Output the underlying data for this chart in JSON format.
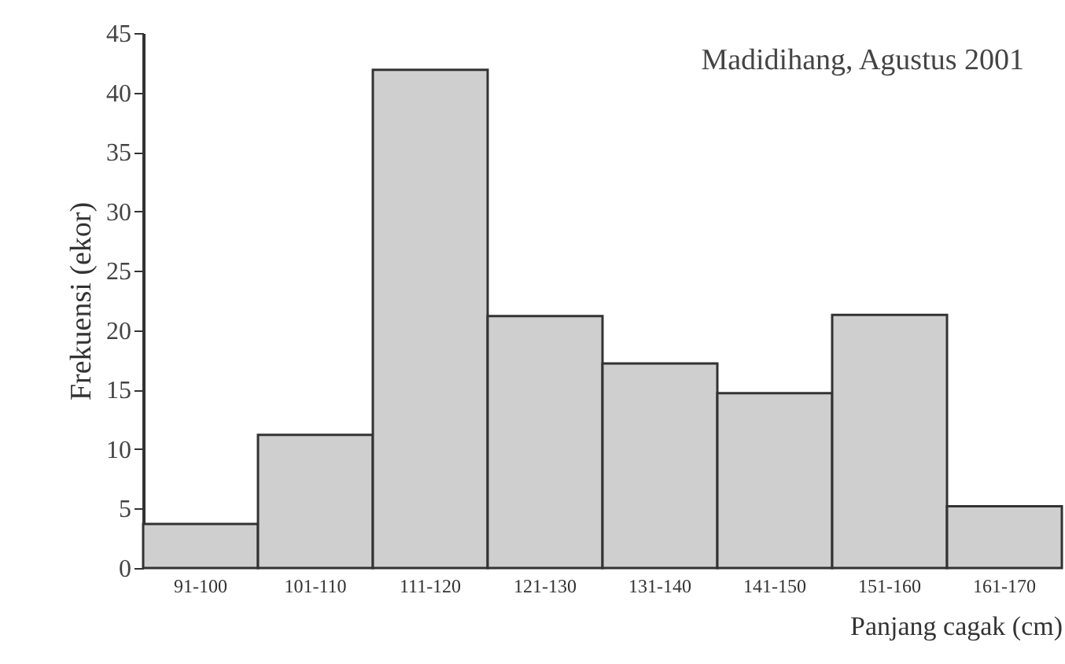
{
  "chart_data": {
    "type": "bar",
    "xlabel": "Panjang cagak (cm)",
    "ylabel": "Frekuensi (ekor)",
    "annotations": [
      "Madidihang, Agustus 2001"
    ],
    "categories": [
      "91-100",
      "101-110",
      "111-120",
      "121-130",
      "131-140",
      "141-150",
      "151-160",
      "161-170"
    ],
    "values": [
      3.7,
      11.2,
      41.9,
      21.2,
      17.2,
      14.7,
      21.3,
      5.2
    ],
    "color": "#cfcfcf",
    "ylim": [
      0,
      45
    ],
    "yticks": [
      0,
      5,
      10,
      15,
      20,
      25,
      30,
      35,
      40,
      45
    ],
    "grid": false
  }
}
